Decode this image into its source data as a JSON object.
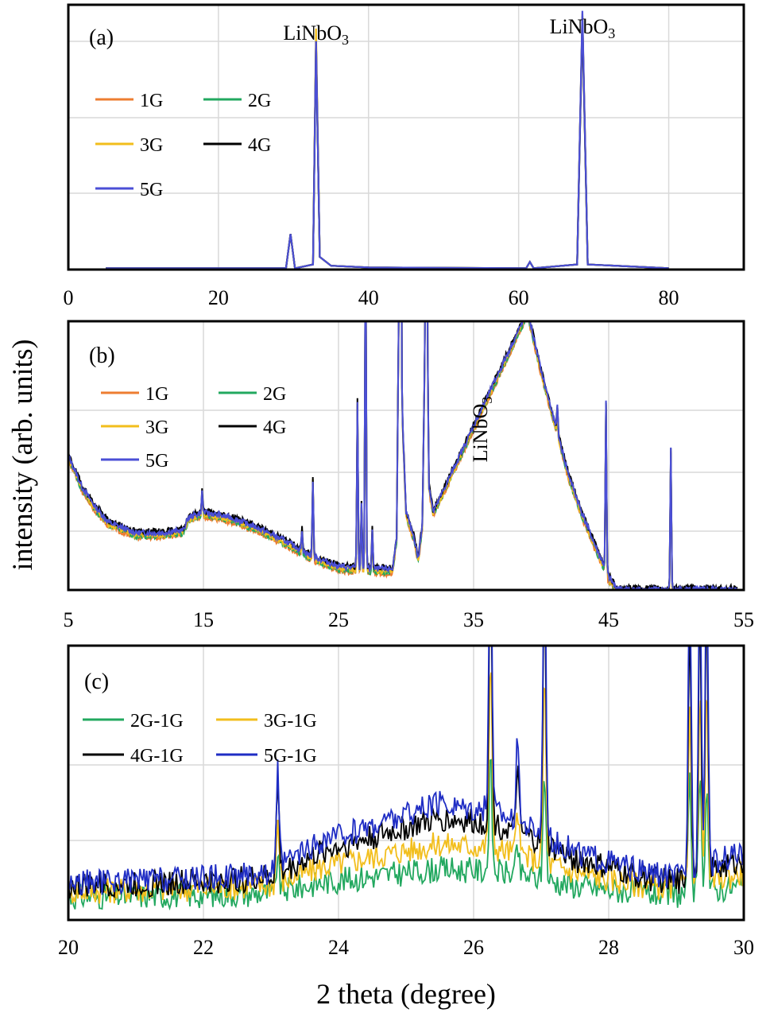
{
  "figure": {
    "ylabel": "intensity (arb. units)",
    "xlabel": "2 theta (degree)"
  },
  "colors": {
    "1G": "#ED7D31",
    "2G": "#22A85F",
    "3G": "#F2BE1C",
    "4G": "#000000",
    "5G": "#4B4FD6",
    "2G-1G": "#22A85F",
    "3G-1G": "#F2BE1C",
    "4G-1G": "#000000",
    "5G-1G": "#1F2DC4"
  },
  "chart_data": [
    {
      "type": "line",
      "panel_label": "(a)",
      "xlim": [
        0,
        90
      ],
      "ylim": [
        0,
        100
      ],
      "xticks": [
        "0",
        "20",
        "40",
        "60",
        "80"
      ],
      "xtick_values": [
        0,
        20,
        40,
        60,
        80
      ],
      "grid": true,
      "legend": "top-left",
      "annotations": [
        {
          "text": "LiNbO",
          "sub": "3",
          "x": 33,
          "y": 100
        },
        {
          "text": "LiNbO",
          "sub": "3",
          "x": 68.5,
          "y": 104
        }
      ],
      "series": [
        {
          "name": "1G",
          "points": [
            [
              5,
              0.5
            ],
            [
              29,
              0.5
            ],
            [
              29.6,
              14
            ],
            [
              30.2,
              0.5
            ],
            [
              32.6,
              2
            ],
            [
              33,
              92
            ],
            [
              33.5,
              5
            ],
            [
              35,
              1.5
            ],
            [
              40,
              0.8
            ],
            [
              61,
              0.5
            ],
            [
              61.5,
              3
            ],
            [
              62,
              0.5
            ],
            [
              67.8,
              2
            ],
            [
              68.5,
              100
            ],
            [
              69.2,
              2
            ],
            [
              80,
              0.5
            ]
          ]
        },
        {
          "name": "2G",
          "points": [
            [
              5,
              0.5
            ],
            [
              29,
              0.5
            ],
            [
              29.6,
              14
            ],
            [
              30.2,
              0.5
            ],
            [
              32.6,
              2
            ],
            [
              33,
              91
            ],
            [
              33.5,
              5
            ],
            [
              35,
              1.5
            ],
            [
              40,
              0.8
            ],
            [
              61,
              0.5
            ],
            [
              61.5,
              3
            ],
            [
              62,
              0.5
            ],
            [
              67.8,
              2
            ],
            [
              68.5,
              100
            ],
            [
              69.2,
              2
            ],
            [
              80,
              0.5
            ]
          ]
        },
        {
          "name": "3G",
          "points": [
            [
              5,
              0.5
            ],
            [
              29,
              0.5
            ],
            [
              29.6,
              14
            ],
            [
              30.2,
              0.5
            ],
            [
              32.6,
              2
            ],
            [
              33,
              95
            ],
            [
              33.5,
              5
            ],
            [
              35,
              1.5
            ],
            [
              40,
              0.8
            ],
            [
              61,
              0.5
            ],
            [
              61.5,
              3
            ],
            [
              62,
              0.5
            ],
            [
              67.8,
              2
            ],
            [
              68.5,
              101
            ],
            [
              69.2,
              2
            ],
            [
              80,
              0.5
            ]
          ]
        },
        {
          "name": "4G",
          "points": [
            [
              5,
              0.5
            ],
            [
              29,
              0.5
            ],
            [
              29.6,
              14
            ],
            [
              30.2,
              0.5
            ],
            [
              32.6,
              2
            ],
            [
              33,
              90
            ],
            [
              33.5,
              5
            ],
            [
              35,
              1.5
            ],
            [
              40,
              0.8
            ],
            [
              61,
              0.5
            ],
            [
              61.5,
              3
            ],
            [
              62,
              0.5
            ],
            [
              67.8,
              2
            ],
            [
              68.5,
              99
            ],
            [
              69.2,
              2
            ],
            [
              80,
              0.5
            ]
          ]
        },
        {
          "name": "5G",
          "points": [
            [
              5,
              0.5
            ],
            [
              29,
              0.5
            ],
            [
              29.6,
              14
            ],
            [
              30.2,
              0.5
            ],
            [
              32.6,
              2
            ],
            [
              33,
              90
            ],
            [
              33.5,
              5
            ],
            [
              35,
              1.5
            ],
            [
              40,
              0.8
            ],
            [
              61,
              0.5
            ],
            [
              61.5,
              3
            ],
            [
              62,
              0.5
            ],
            [
              67.8,
              2
            ],
            [
              68.5,
              102
            ],
            [
              69.2,
              2
            ],
            [
              80,
              0.5
            ]
          ]
        }
      ]
    },
    {
      "type": "line",
      "panel_label": "(b)",
      "xlim": [
        5,
        55
      ],
      "ylim": [
        0,
        100
      ],
      "xticks": [
        "5",
        "15",
        "25",
        "35",
        "45",
        "55"
      ],
      "xtick_values": [
        5,
        15,
        25,
        35,
        45,
        55
      ],
      "grid": true,
      "legend": "top-left",
      "annotations": [
        {
          "text": "LiNbO",
          "sub": "3",
          "x": 36,
          "y": 58,
          "rotate": -90
        }
      ],
      "series": [
        {
          "name": "1G",
          "offset": -1.5
        },
        {
          "name": "2G",
          "offset": -1.0
        },
        {
          "name": "3G",
          "offset": -0.5
        },
        {
          "name": "4G",
          "offset": 0.8
        },
        {
          "name": "5G",
          "offset": 0.2
        }
      ],
      "baseline": [
        [
          5,
          52
        ],
        [
          6,
          40
        ],
        [
          7,
          32
        ],
        [
          8,
          26
        ],
        [
          10,
          22
        ],
        [
          12,
          22
        ],
        [
          13.5,
          23
        ],
        [
          13.9,
          28
        ],
        [
          15,
          30
        ],
        [
          17,
          28
        ],
        [
          19,
          24
        ],
        [
          21,
          19
        ],
        [
          23,
          13
        ],
        [
          25,
          9
        ],
        [
          27,
          8
        ],
        [
          29,
          8
        ],
        [
          29.3,
          20
        ],
        [
          29.5,
          130
        ],
        [
          29.7,
          70
        ],
        [
          30,
          30
        ],
        [
          30.6,
          20
        ],
        [
          30.9,
          12
        ],
        [
          31.2,
          25
        ],
        [
          31.5,
          130
        ],
        [
          31.7,
          40
        ],
        [
          32,
          30
        ],
        [
          39,
          108
        ],
        [
          40,
          85
        ],
        [
          41,
          65
        ],
        [
          42,
          45
        ],
        [
          43,
          30
        ],
        [
          44,
          17
        ],
        [
          44.6,
          10
        ],
        [
          45,
          5
        ],
        [
          45.5,
          1
        ],
        [
          46,
          0
        ],
        [
          55,
          0
        ]
      ],
      "peaks": [
        [
          14.9,
          8
        ],
        [
          22.3,
          8
        ],
        [
          23.1,
          30
        ],
        [
          26.4,
          65
        ],
        [
          26.7,
          25
        ],
        [
          27.0,
          140
        ],
        [
          27.5,
          15
        ],
        [
          29.6,
          130
        ],
        [
          31.5,
          130
        ],
        [
          41.2,
          10
        ],
        [
          44.8,
          65
        ],
        [
          49.6,
          55
        ]
      ]
    },
    {
      "type": "line",
      "panel_label": "(c)",
      "xlim": [
        20,
        30
      ],
      "ylim": [
        0,
        100
      ],
      "xticks": [
        "20",
        "22",
        "24",
        "26",
        "28",
        "30"
      ],
      "xtick_values": [
        20,
        22,
        24,
        26,
        28,
        30
      ],
      "grid": true,
      "legend": "top-left",
      "series": [
        {
          "name": "2G-1G",
          "amplitude": 0.35
        },
        {
          "name": "3G-1G",
          "amplitude": 0.6
        },
        {
          "name": "4G-1G",
          "amplitude": 0.85
        },
        {
          "name": "5G-1G",
          "amplitude": 1.0
        }
      ],
      "envelope": [
        [
          20,
          8
        ],
        [
          21,
          9
        ],
        [
          22,
          10
        ],
        [
          23,
          12
        ],
        [
          23.8,
          24
        ],
        [
          24.5,
          30
        ],
        [
          25.5,
          38
        ],
        [
          26.3,
          36
        ],
        [
          26.8,
          30
        ],
        [
          27.5,
          20
        ],
        [
          28.5,
          12
        ],
        [
          29,
          10
        ],
        [
          29.5,
          15
        ],
        [
          30,
          20
        ]
      ],
      "peaks": [
        [
          23.1,
          40
        ],
        [
          26.25,
          120
        ],
        [
          26.65,
          30
        ],
        [
          27.05,
          120
        ],
        [
          29.2,
          120
        ],
        [
          29.35,
          120
        ],
        [
          29.45,
          120
        ]
      ]
    }
  ]
}
